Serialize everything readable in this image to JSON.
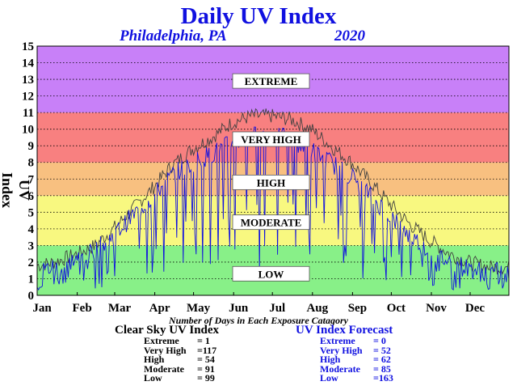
{
  "chart_data": {
    "type": "line",
    "title": "Daily UV Index",
    "location": "Philadelphia, PA",
    "year": "2020",
    "ylabel": "UV Index",
    "xlabel": "Number of Days in Each Exposure Catagory",
    "ylim": [
      0,
      15
    ],
    "yticks": [
      "0",
      "1",
      "2",
      "3",
      "4",
      "5",
      "6",
      "7",
      "8",
      "9",
      "10",
      "11",
      "12",
      "13",
      "14",
      "15"
    ],
    "months": [
      "Jan",
      "Feb",
      "Mar",
      "Apr",
      "May",
      "Jun",
      "Jul",
      "Aug",
      "Sep",
      "Oct",
      "Nov",
      "Dec"
    ],
    "grid": true,
    "bands": [
      {
        "label": "LOW",
        "from": 0,
        "to": 3,
        "color": "#88f088",
        "label_value": 1.3
      },
      {
        "label": "MODERATE",
        "from": 3,
        "to": 6,
        "color": "#f8f880",
        "label_value": 4.4
      },
      {
        "label": "HIGH",
        "from": 6,
        "to": 8,
        "color": "#f8c080",
        "label_value": 6.8
      },
      {
        "label": "VERY HIGH",
        "from": 8,
        "to": 11,
        "color": "#f88080",
        "label_value": 9.4
      },
      {
        "label": "EXTREME",
        "from": 11,
        "to": 15,
        "color": "#c880f8",
        "label_value": 12.9
      }
    ],
    "series": [
      {
        "name": "Clear Sky UV Index",
        "color": "#404040",
        "x": [
          1,
          15,
          32,
          46,
          60,
          75,
          91,
          105,
          121,
          136,
          152,
          167,
          182,
          197,
          213,
          228,
          244,
          259,
          274,
          289,
          305,
          320,
          335,
          350,
          366
        ],
        "values": [
          1.8,
          2.0,
          2.5,
          3.0,
          4.0,
          5.2,
          6.5,
          7.8,
          8.8,
          9.5,
          10.4,
          10.8,
          10.8,
          10.6,
          10.0,
          9.0,
          8.0,
          6.8,
          5.5,
          4.3,
          3.3,
          2.5,
          2.0,
          1.7,
          1.7
        ]
      },
      {
        "name": "UV Index Forecast",
        "color": "#1010e0",
        "x": [
          1,
          15,
          32,
          46,
          60,
          75,
          91,
          105,
          121,
          136,
          152,
          167,
          182,
          197,
          213,
          228,
          244,
          259,
          274,
          289,
          305,
          320,
          335,
          350,
          366
        ],
        "values": [
          1.5,
          1.7,
          2.2,
          2.7,
          3.6,
          4.8,
          6.0,
          7.2,
          8.0,
          8.5,
          9.2,
          9.6,
          9.6,
          9.4,
          8.8,
          8.0,
          7.2,
          6.0,
          4.8,
          3.6,
          2.7,
          2.0,
          1.6,
          1.4,
          1.4
        ]
      }
    ]
  },
  "clear_sky": {
    "title": "Clear Sky UV Index",
    "rows": [
      {
        "label": "Extreme",
        "value": "=   1"
      },
      {
        "label": "Very High",
        "value": "=117"
      },
      {
        "label": "High",
        "value": "= 54"
      },
      {
        "label": "Moderate",
        "value": "= 91"
      },
      {
        "label": "Low",
        "value": "= 99"
      }
    ]
  },
  "forecast": {
    "title": "UV Index Forecast",
    "rows": [
      {
        "label": "Extreme",
        "value": "=   0"
      },
      {
        "label": "Very High",
        "value": "= 52"
      },
      {
        "label": "High",
        "value": "= 62"
      },
      {
        "label": "Moderate",
        "value": "= 85"
      },
      {
        "label": "Low",
        "value": "=163"
      }
    ]
  }
}
